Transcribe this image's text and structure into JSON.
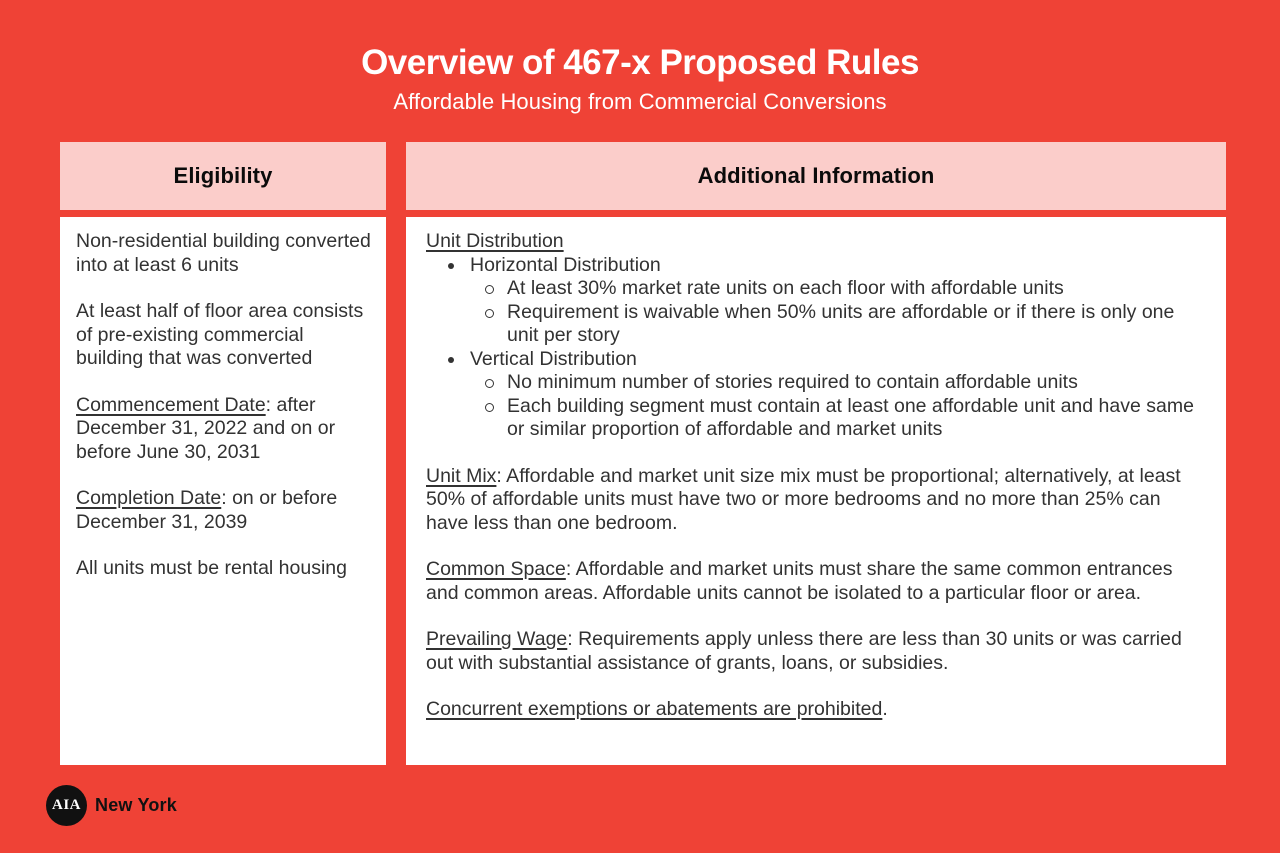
{
  "page": {
    "title": "Overview of 467-x Proposed Rules",
    "subtitle": "Affordable Housing from Commercial Conversions"
  },
  "colors": {
    "background_red": "#EF4236",
    "header_pink": "#FBCDCA",
    "card_white": "#FFFFFF",
    "body_text": "#323232",
    "header_text": "#0B0B0B",
    "logo_black": "#111111"
  },
  "eligibility": {
    "header": "Eligibility",
    "paragraphs": [
      {
        "label": "",
        "text": "Non-residential building converted into at least 6 units"
      },
      {
        "label": "",
        "text": "At least half of floor area consists of pre-existing commercial building that was converted"
      },
      {
        "label": "Commencement Date",
        "text": ": after December 31, 2022 and on or before June 30, 2031"
      },
      {
        "label": "Completion Date",
        "text": ": on or before December 31, 2039"
      },
      {
        "label": "",
        "text": "All units must be rental housing"
      }
    ]
  },
  "additional": {
    "header": "Additional Information",
    "unit_distribution": {
      "heading": "Unit Distribution",
      "items": [
        {
          "label": "Horizontal Distribution",
          "subitems": [
            "At least 30% market rate units on each floor with affordable units",
            "Requirement is waivable when 50% units are affordable or if there is only one unit per story"
          ]
        },
        {
          "label": "Vertical Distribution",
          "subitems": [
            "No minimum number of stories required to contain affordable units",
            "Each building segment must contain at least one affordable unit and have same or similar proportion of affordable and market units"
          ]
        }
      ]
    },
    "paragraphs": [
      {
        "label": "Unit Mix",
        "text": ": Affordable and market unit size mix must be proportional; alternatively, at least 50% of affordable units must have two or more bedrooms and no more than 25% can have less than one bedroom."
      },
      {
        "label": "Common Space",
        "text": ": Affordable and market units must share the same common entrances and common areas. Affordable units cannot be isolated to a particular floor or area."
      },
      {
        "label": "Prevailing Wage",
        "text": ": Requirements apply unless there are less than 30 units or was carried out with substantial assistance of grants, loans, or subsidies."
      },
      {
        "label": "Concurrent exemptions or abatements are prohibited",
        "text": "."
      }
    ]
  },
  "footer": {
    "logo_text": "AIA",
    "org_name": "New York"
  }
}
